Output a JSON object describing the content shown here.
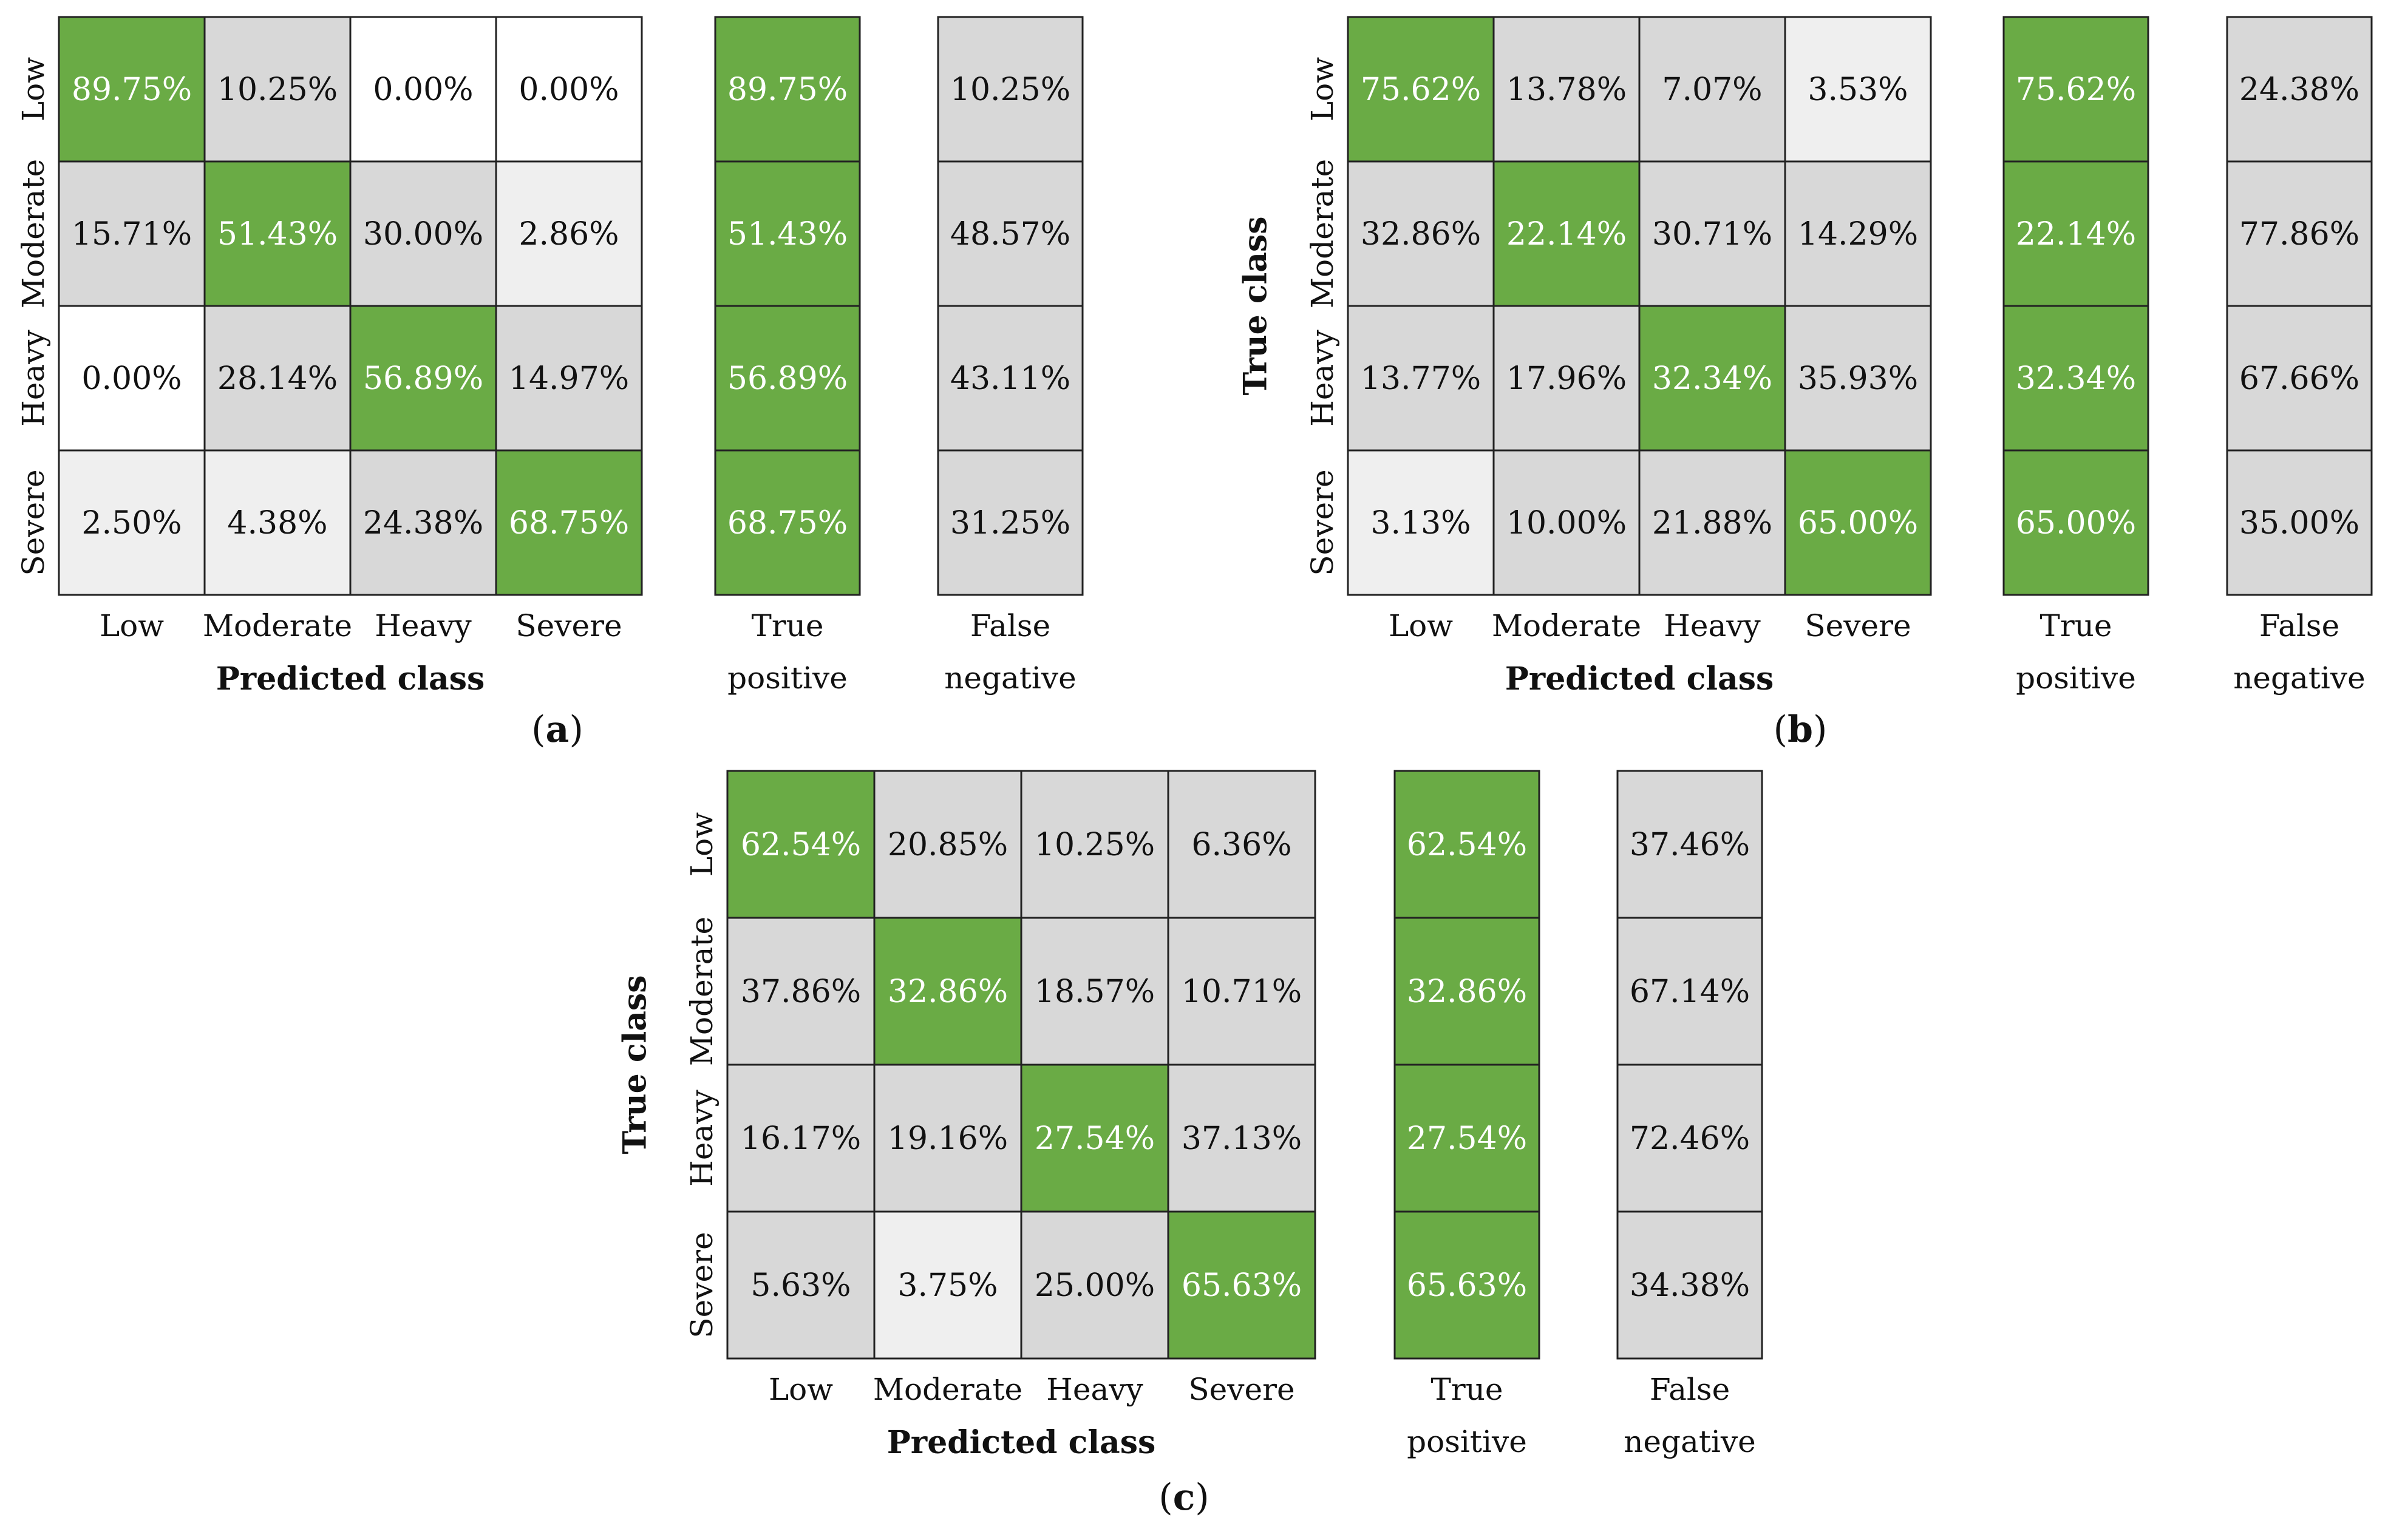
{
  "figure": {
    "class_labels": [
      "Low",
      "Moderate",
      "Heavy",
      "Severe"
    ],
    "true_class_label": "True class",
    "predicted_class_label": "Predicted class",
    "tp_label_line1": "True",
    "tp_label_line2": "positive",
    "fn_label_line1": "False",
    "fn_label_line2": "negative",
    "colors": {
      "diagonal": "#6aab45",
      "high": "#d8d8d8",
      "low": "#efefef",
      "zero": "#ffffff",
      "border": "#222222",
      "text": "#111111",
      "text_on_green": "#ffffff"
    }
  },
  "chart_data": [
    {
      "type": "heatmap",
      "panel_letter": "a",
      "rows": [
        "Low",
        "Moderate",
        "Heavy",
        "Severe"
      ],
      "columns": [
        "Low",
        "Moderate",
        "Heavy",
        "Severe"
      ],
      "values": [
        [
          89.75,
          10.25,
          0.0,
          0.0
        ],
        [
          15.71,
          51.43,
          30.0,
          2.86
        ],
        [
          0.0,
          28.14,
          56.89,
          14.97
        ],
        [
          2.5,
          4.38,
          24.38,
          68.75
        ]
      ],
      "true_positive": [
        89.75,
        51.43,
        56.89,
        68.75
      ],
      "false_negative": [
        10.25,
        48.57,
        43.11,
        31.25
      ],
      "show_ylabel": false
    },
    {
      "type": "heatmap",
      "panel_letter": "b",
      "rows": [
        "Low",
        "Moderate",
        "Heavy",
        "Severe"
      ],
      "columns": [
        "Low",
        "Moderate",
        "Heavy",
        "Severe"
      ],
      "values": [
        [
          75.62,
          13.78,
          7.07,
          3.53
        ],
        [
          32.86,
          22.14,
          30.71,
          14.29
        ],
        [
          13.77,
          17.96,
          32.34,
          35.93
        ],
        [
          3.13,
          10.0,
          21.88,
          65.0
        ]
      ],
      "true_positive": [
        75.62,
        22.14,
        32.34,
        65.0
      ],
      "false_negative": [
        24.38,
        77.86,
        67.66,
        35.0
      ],
      "show_ylabel": true
    },
    {
      "type": "heatmap",
      "panel_letter": "c",
      "rows": [
        "Low",
        "Moderate",
        "Heavy",
        "Severe"
      ],
      "columns": [
        "Low",
        "Moderate",
        "Heavy",
        "Severe"
      ],
      "values": [
        [
          62.54,
          20.85,
          10.25,
          6.36
        ],
        [
          37.86,
          32.86,
          18.57,
          10.71
        ],
        [
          16.17,
          19.16,
          27.54,
          37.13
        ],
        [
          5.63,
          3.75,
          25.0,
          65.63
        ]
      ],
      "true_positive": [
        62.54,
        32.86,
        27.54,
        65.63
      ],
      "false_negative": [
        37.46,
        67.14,
        72.46,
        34.38
      ],
      "show_ylabel": true
    }
  ]
}
